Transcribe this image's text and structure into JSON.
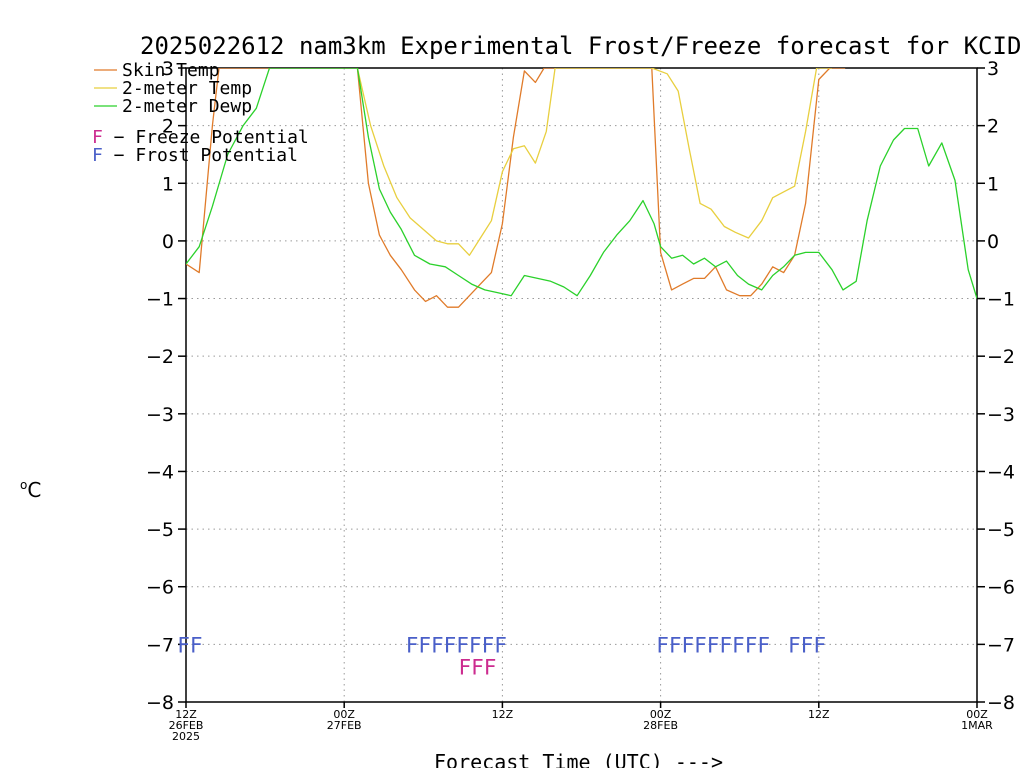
{
  "chart_data": {
    "type": "line",
    "title": "2025022612 nam3km Experimental Frost/Freeze forecast for KCID",
    "xlabel": "Forecast Time (UTC) --->",
    "ylabel_unit": "°C",
    "ylim": [
      -8,
      3
    ],
    "xlim": [
      0,
      36
    ],
    "grid": true,
    "legend_position": "top-left",
    "y_ticks": [
      "−8",
      "−7",
      "−6",
      "−5",
      "−4",
      "−3",
      "−2",
      "−1",
      "0",
      "1",
      "2",
      "3"
    ],
    "x_ticks": [
      {
        "x": 0,
        "lines": [
          "12Z",
          "26FEB",
          "2025"
        ]
      },
      {
        "x": 7.2,
        "lines": [
          "00Z",
          "27FEB"
        ]
      },
      {
        "x": 14.4,
        "lines": [
          "12Z"
        ]
      },
      {
        "x": 21.6,
        "lines": [
          "00Z",
          "28FEB"
        ]
      },
      {
        "x": 28.8,
        "lines": [
          "12Z"
        ]
      },
      {
        "x": 36,
        "lines": [
          "00Z",
          "1MAR"
        ]
      }
    ],
    "series": [
      {
        "name": "Skin Temp",
        "color": "#e07b2a",
        "x": [
          0,
          0.6,
          1.2,
          1.5,
          7.8,
          8.3,
          8.8,
          9.3,
          9.8,
          10.4,
          10.9,
          11.4,
          11.9,
          12.4,
          12.9,
          13.4,
          13.9,
          14.4,
          14.9,
          15.4,
          15.9,
          16.3,
          16.8,
          21.2,
          21.6,
          22.1,
          22.6,
          23.1,
          23.6,
          24.1,
          24.6,
          25.2,
          25.7,
          26.2,
          26.7,
          27.2,
          27.7,
          28.2,
          28.8,
          29.3,
          29.7,
          30.0
        ],
        "y": [
          -0.4,
          -0.55,
          2.0,
          3.0,
          3.0,
          1.0,
          0.1,
          -0.25,
          -0.5,
          -0.85,
          -1.05,
          -0.95,
          -1.15,
          -1.15,
          -0.95,
          -0.75,
          -0.55,
          0.3,
          1.8,
          2.95,
          2.75,
          3.0,
          3.0,
          3.0,
          -0.2,
          -0.85,
          -0.75,
          -0.65,
          -0.65,
          -0.45,
          -0.85,
          -0.95,
          -0.95,
          -0.75,
          -0.45,
          -0.55,
          -0.25,
          0.65,
          2.8,
          3.0,
          3.0,
          3.0
        ]
      },
      {
        "name": "2-meter Temp",
        "color": "#e8cf3f",
        "x": [
          7.8,
          8.4,
          9.0,
          9.6,
          10.2,
          10.8,
          11.4,
          11.9,
          12.4,
          12.9,
          13.4,
          13.9,
          14.4,
          14.9,
          15.4,
          15.9,
          16.4,
          16.8,
          21.2,
          21.9,
          22.4,
          22.9,
          23.4,
          23.9,
          24.5,
          25.0,
          25.6,
          26.2,
          26.7,
          27.2,
          27.7,
          28.2,
          28.7,
          29.1,
          29.4
        ],
        "y": [
          3.0,
          2.0,
          1.3,
          0.75,
          0.4,
          0.2,
          0.0,
          -0.05,
          -0.05,
          -0.25,
          0.05,
          0.35,
          1.2,
          1.6,
          1.65,
          1.35,
          1.9,
          3.0,
          3.0,
          2.9,
          2.6,
          1.6,
          0.65,
          0.55,
          0.25,
          0.15,
          0.05,
          0.35,
          0.75,
          0.85,
          0.95,
          1.9,
          3.0,
          3.0,
          3.0
        ]
      },
      {
        "name": "2-meter Dewp",
        "color": "#2bd12b",
        "x": [
          0,
          0.6,
          1.2,
          1.9,
          2.6,
          3.2,
          3.8,
          7.8,
          8.3,
          8.8,
          9.3,
          9.8,
          10.4,
          11.1,
          11.8,
          12.4,
          13.0,
          13.6,
          14.2,
          14.8,
          15.4,
          16.0,
          16.6,
          17.2,
          17.8,
          18.4,
          19.0,
          19.6,
          20.2,
          20.8,
          21.3,
          21.6,
          22.1,
          22.6,
          23.1,
          23.6,
          24.1,
          24.6,
          25.1,
          25.6,
          26.2,
          26.7,
          27.2,
          27.7,
          28.2,
          28.8,
          29.4,
          29.9,
          30.5,
          31.0,
          31.6,
          32.2,
          32.7,
          33.3,
          33.8,
          34.4,
          35.0,
          35.6,
          36.0
        ],
        "y": [
          -0.4,
          -0.1,
          0.6,
          1.5,
          2.0,
          2.3,
          3.0,
          3.0,
          1.8,
          0.9,
          0.5,
          0.2,
          -0.25,
          -0.4,
          -0.45,
          -0.6,
          -0.75,
          -0.85,
          -0.9,
          -0.95,
          -0.6,
          -0.65,
          -0.7,
          -0.8,
          -0.95,
          -0.6,
          -0.2,
          0.1,
          0.35,
          0.7,
          0.3,
          -0.1,
          -0.3,
          -0.25,
          -0.4,
          -0.3,
          -0.45,
          -0.35,
          -0.6,
          -0.75,
          -0.85,
          -0.6,
          -0.45,
          -0.25,
          -0.2,
          -0.2,
          -0.5,
          -0.85,
          -0.7,
          0.35,
          1.3,
          1.75,
          1.95,
          1.95,
          1.3,
          1.7,
          1.05,
          -0.5,
          -1.0
        ]
      }
    ],
    "potential_legend": [
      {
        "letter": "F",
        "label": " − Freeze Potential",
        "color": "#cc2b8f"
      },
      {
        "letter": "F",
        "label": " − Frost Potential",
        "color": "#4a5fc8"
      }
    ],
    "frost_flags": [
      {
        "x_start": -0.4,
        "text": "FF"
      },
      {
        "x_start": 10.0,
        "text": "FFFFFFFF"
      },
      {
        "x_start": 21.4,
        "text": "FFFFFFFFF"
      },
      {
        "x_start": 27.4,
        "text": "FFF"
      }
    ],
    "freeze_flags": [
      {
        "x_start": 12.4,
        "text": "FFF"
      }
    ]
  }
}
